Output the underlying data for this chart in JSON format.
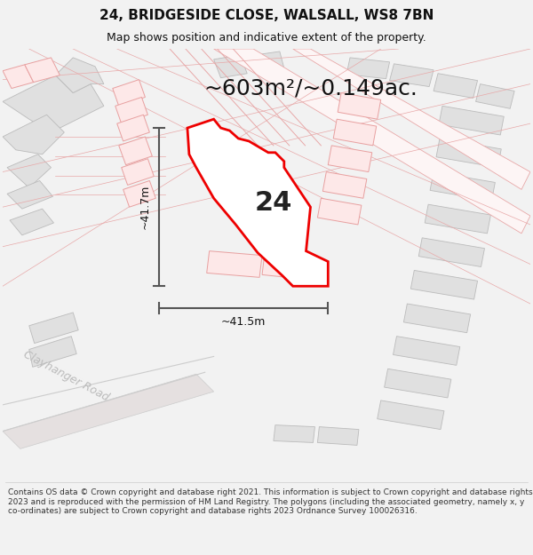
{
  "title": "24, BRIDGESIDE CLOSE, WALSALL, WS8 7BN",
  "subtitle": "Map shows position and indicative extent of the property.",
  "area_label": "~603m²/~0.149ac.",
  "number_label": "24",
  "dim_h": "~41.7m",
  "dim_w": "~41.5m",
  "road_label": "Clayhanger Road",
  "footer": "Contains OS data © Crown copyright and database right 2021. This information is subject to Crown copyright and database rights 2023 and is reproduced with the permission of HM Land Registry. The polygons (including the associated geometry, namely x, y co-ordinates) are subject to Crown copyright and database rights 2023 Ordnance Survey 100026316.",
  "bg_color": "#f2f2f2",
  "map_bg": "#ffffff",
  "plot_color": "#ee0000",
  "plot_fill": "#ffffff",
  "gray_fill": "#e0e0e0",
  "gray_edge": "#bbbbbb",
  "pink_fill": "#fde8e8",
  "pink_edge": "#e8a0a0",
  "dim_line_color": "#555555",
  "title_color": "#111111",
  "road_text_color": "#bbbbbb",
  "figsize": [
    6.0,
    6.25
  ],
  "dpi": 100,
  "title_fontsize": 11,
  "subtitle_fontsize": 9,
  "area_fontsize": 18,
  "number_fontsize": 22,
  "dim_fontsize": 9,
  "road_fontsize": 9,
  "footer_fontsize": 6.5
}
